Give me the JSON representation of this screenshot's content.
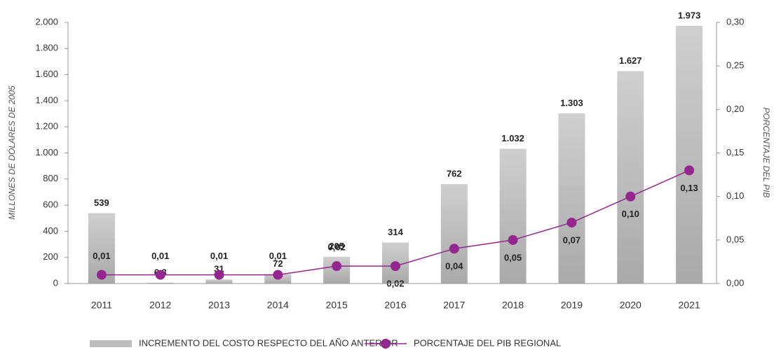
{
  "chart_data": {
    "type": "bar",
    "ylabel": "MILLONES DE DÓLARES DE 2005",
    "y2label": "PORCENTAJE DEL PIB",
    "categories": [
      "2011",
      "2012",
      "2013",
      "2014",
      "2015",
      "2016",
      "2017",
      "2018",
      "2019",
      "2020",
      "2021"
    ],
    "series": [
      {
        "name": "INCREMENTO DEL COSTO RESPECTO DEL AÑO ANTERIOR",
        "type": "bar",
        "color": "#b8b8b8",
        "values": [
          539,
          6.3,
          31,
          72,
          205,
          314,
          762,
          1032,
          1303,
          1627,
          1973
        ],
        "value_labels": [
          "539",
          "6,3",
          "31",
          "72",
          "205",
          "314",
          "762",
          "1.032",
          "1.303",
          "1.627",
          "1.973"
        ]
      },
      {
        "name": "PORCENTAJE DEL PIB REGIONAL",
        "type": "line",
        "axis": "y2",
        "color": "#93278f",
        "values": [
          0.01,
          0.01,
          0.01,
          0.01,
          0.02,
          0.02,
          0.04,
          0.05,
          0.07,
          0.1,
          0.13
        ],
        "value_labels": [
          "0,01",
          "0,01",
          "0,01",
          "0,01",
          "0,02",
          "0,02",
          "0,04",
          "0,05",
          "0,07",
          "0,10",
          "0,13"
        ]
      }
    ],
    "ylim": [
      0,
      2000
    ],
    "yticks": [
      0,
      200,
      400,
      600,
      800,
      {
        "value": 1000,
        "label": "1.000"
      },
      {
        "value": 1200,
        "label": "1.200"
      },
      {
        "value": 1400,
        "label": "1.400"
      },
      {
        "value": 1600,
        "label": "1.600"
      },
      {
        "value": 1800,
        "label": "1.800"
      },
      {
        "value": 2000,
        "label": "2.000"
      }
    ],
    "y2lim": [
      0,
      0.3
    ],
    "y2ticks": [
      {
        "value": 0,
        "label": "0,00"
      },
      {
        "value": 0.05,
        "label": "0,05"
      },
      {
        "value": 0.1,
        "label": "0,10"
      },
      {
        "value": 0.15,
        "label": "0,15"
      },
      {
        "value": 0.2,
        "label": "0,20"
      },
      {
        "value": 0.25,
        "label": "0,25"
      },
      {
        "value": 0.3,
        "label": "0,30"
      }
    ]
  }
}
